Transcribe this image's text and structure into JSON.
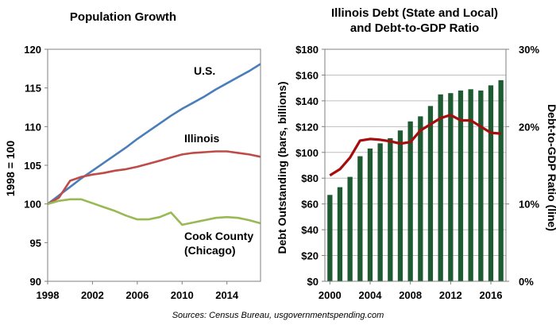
{
  "source_note": "Sources: Census Bureau, usgovernmentspending.com",
  "chart_data": [
    {
      "type": "line",
      "title": "Population Growth",
      "ylabel": "1998 = 100",
      "ylim": [
        90,
        120
      ],
      "yticks": [
        "90",
        "95",
        "100",
        "105",
        "110",
        "115",
        "120"
      ],
      "xlim": [
        1998,
        2017
      ],
      "xticks": [
        "1998",
        "2002",
        "2006",
        "2010",
        "2014"
      ],
      "grid": false,
      "x": [
        1998,
        1999,
        2000,
        2001,
        2002,
        2003,
        2004,
        2005,
        2006,
        2007,
        2008,
        2009,
        2010,
        2011,
        2012,
        2013,
        2014,
        2015,
        2016,
        2017
      ],
      "series": [
        {
          "name": "U.S.",
          "color": "#4a7ebb",
          "values": [
            100,
            101.1,
            102.2,
            103.3,
            104.3,
            105.3,
            106.3,
            107.3,
            108.4,
            109.4,
            110.4,
            111.4,
            112.3,
            113.1,
            113.9,
            114.8,
            115.6,
            116.4,
            117.2,
            118.1
          ]
        },
        {
          "name": "Illinois",
          "color": "#be4b48",
          "values": [
            100,
            100.8,
            103.0,
            103.5,
            103.8,
            104.0,
            104.3,
            104.5,
            104.8,
            105.2,
            105.6,
            106.0,
            106.4,
            106.6,
            106.7,
            106.8,
            106.8,
            106.6,
            106.4,
            106.1
          ]
        },
        {
          "name": "Cook County (Chicago)",
          "label_lines": [
            "Cook County",
            "(Chicago)"
          ],
          "color": "#98b954",
          "values": [
            100,
            100.4,
            100.6,
            100.6,
            100.1,
            99.6,
            99.1,
            98.5,
            98.0,
            98.0,
            98.3,
            98.9,
            97.3,
            97.6,
            97.9,
            98.2,
            98.3,
            98.2,
            97.9,
            97.5
          ]
        }
      ]
    },
    {
      "type": "bar+line",
      "title_lines": [
        "Illinois Debt (State and Local)",
        "and Debt-to-GDP Ratio"
      ],
      "ylabel_left": "Debt Outstanding (bars, billions)",
      "ylabel_right": "Debt-to-GDP Ratio (line)",
      "ylim_left": [
        0,
        180
      ],
      "yticks_left": [
        "$0",
        "$20",
        "$40",
        "$60",
        "$80",
        "$100",
        "$120",
        "$140",
        "$160",
        "$180"
      ],
      "ylim_right": [
        0,
        30
      ],
      "yticks_right": [
        "0%",
        "10%",
        "20%",
        "30%"
      ],
      "xticks": [
        "2000",
        "2004",
        "2008",
        "2012",
        "2016"
      ],
      "grid": true,
      "x": [
        2000,
        2001,
        2002,
        2003,
        2004,
        2005,
        2006,
        2007,
        2008,
        2009,
        2010,
        2011,
        2012,
        2013,
        2014,
        2015,
        2016,
        2017
      ],
      "bars": {
        "name": "Debt Outstanding",
        "color": "#1e5a32",
        "values": [
          67,
          73,
          81,
          97,
          103,
          107,
          111,
          117,
          124,
          128,
          136,
          145,
          146,
          148,
          149,
          148,
          152,
          156
        ]
      },
      "line": {
        "name": "Debt-to-GDP Ratio",
        "color": "#a50d0d",
        "values": [
          13.7,
          14.5,
          16.0,
          18.2,
          18.4,
          18.3,
          18.1,
          17.8,
          18.0,
          19.5,
          20.3,
          21.1,
          21.5,
          20.8,
          20.8,
          20.0,
          19.2,
          19.1
        ]
      }
    }
  ]
}
